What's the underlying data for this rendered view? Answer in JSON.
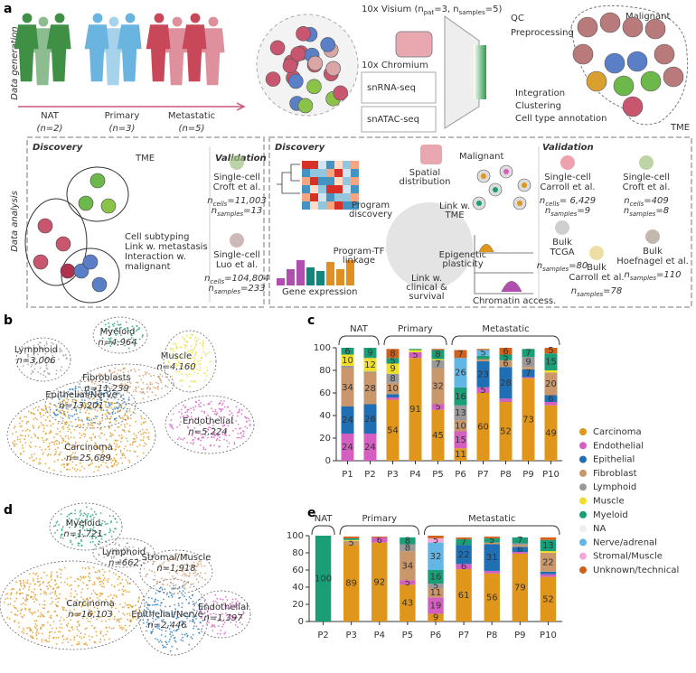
{
  "panel_labels": [
    "a",
    "b",
    "c",
    "d",
    "e"
  ],
  "generation": {
    "side_label": "Data generation",
    "cohorts": [
      {
        "name": "NAT",
        "n": "(n=2)",
        "color": "#3f8f45"
      },
      {
        "name": "Primary",
        "n": "(n=3)",
        "color": "#6ab4e0"
      },
      {
        "name": "Metastatic",
        "n": "(n=5)",
        "color": "#c8485a"
      }
    ],
    "visium": [
      "10x Visium (",
      "",
      "n",
      "pat",
      "=3, n",
      "samples",
      "=5)"
    ],
    "chromium": "10x Chromium",
    "snrna": "snRNA-seq",
    "snatac": "snATAC-seq",
    "qc": [
      "QC",
      "Preprocessing"
    ],
    "integration": [
      "Integration",
      "Clustering",
      "Cell type annotation"
    ],
    "malignant": "Malignant",
    "tme": "TME"
  },
  "analysis": {
    "side_label": "Data analysis",
    "tme": {
      "discovery": "Discovery",
      "title": "TME",
      "notes": [
        "Cell subtyping",
        "Link w. metastasis",
        "Interaction w.",
        "malignant"
      ],
      "validation": "Validation",
      "sets": [
        {
          "lines": [
            "Single-cell",
            "Croft et al."
          ],
          "stats": [
            [
              "n",
              "cells",
              "=11,003"
            ],
            [
              "n",
              "samples",
              "=13"
            ]
          ]
        },
        {
          "lines": [
            "Single-cell",
            "Luo et al."
          ],
          "stats": [
            [
              "n",
              "cells",
              "=104,804"
            ],
            [
              "n",
              "samples",
              "=233"
            ]
          ]
        }
      ]
    },
    "malignant": {
      "discovery": "Discovery",
      "title": "Malignant",
      "nodes": [
        [
          "Spatial",
          "distribution"
        ],
        [
          "Program",
          "discovery"
        ],
        [
          "Link w.",
          "TME"
        ],
        [
          "Program-TF",
          "linkage"
        ],
        [
          "Epigenetic",
          "plasticity"
        ],
        [
          "Link w.",
          "clinical &",
          "survival"
        ]
      ],
      "gene_expression": "Gene expression",
      "chromatin": "Chromatin access.",
      "validation": "Validation",
      "sets": [
        {
          "lines": [
            "Single-cell",
            "Carroll et al."
          ],
          "stats": [
            [
              "n",
              "cells",
              "= 6,429"
            ],
            [
              "n",
              "samples",
              "=9"
            ]
          ]
        },
        {
          "lines": [
            "Single-cell",
            "Croft et al."
          ],
          "stats": [
            [
              "n",
              "cells",
              "=409"
            ],
            [
              "n",
              "samples",
              "=8"
            ]
          ]
        },
        {
          "lines": [
            "Bulk",
            "TCGA"
          ],
          "stats": [
            [
              "n",
              "samples",
              "=80"
            ]
          ]
        },
        {
          "lines": [
            "Bulk",
            "Hoefnagel et al."
          ],
          "stats": [
            [
              "n",
              "samples",
              "=110"
            ]
          ]
        },
        {
          "lines": [
            "Bulk",
            "Carroll et al."
          ],
          "stats": [
            [
              "n",
              "samples",
              "=78"
            ]
          ]
        }
      ]
    }
  },
  "umap_b": [
    {
      "name": "Myeloid",
      "n": "n=4,964",
      "color": "#1a9e77"
    },
    {
      "name": "Lymphoid",
      "n": "n=3,006",
      "color": "#999999"
    },
    {
      "name": "Muscle",
      "n": "n=4,160",
      "color": "#f0de2a"
    },
    {
      "name": "Fibroblasts",
      "n": "n=11,239",
      "color": "#c9976b"
    },
    {
      "name": "Epithelial/Nerve",
      "n": "n=13,201",
      "color": "#2a7ab8"
    },
    {
      "name": "Endothelial",
      "n": "n=5,224",
      "color": "#d55fc0"
    },
    {
      "name": "Carcinoma",
      "n": "n=25,689",
      "color": "#e0961a"
    }
  ],
  "umap_d": [
    {
      "name": "Myeloid",
      "n": "n=1,721",
      "color": "#1a9e77"
    },
    {
      "name": "Lymphoid",
      "n": "n=662",
      "color": "#999999"
    },
    {
      "name": "Stromal/Muscle",
      "n": "n=1,918",
      "color": "#c9976b"
    },
    {
      "name": "Carcinoma",
      "n": "n=16,103",
      "color": "#e0961a"
    },
    {
      "name": "Epithelial/Nerve",
      "n": "n=2,446",
      "color": "#2a7ab8"
    },
    {
      "name": "Endothelial",
      "n": "n=1,397",
      "color": "#d55fc0"
    }
  ],
  "chart_data": [
    {
      "type": "stacked_bar",
      "categories": [
        "P1",
        "P2",
        "P3",
        "P4",
        "P5",
        "P6",
        "P7",
        "P8",
        "P9",
        "P10"
      ],
      "groups": [
        {
          "label": "NAT",
          "span": [
            0,
            1
          ]
        },
        {
          "label": "Primary",
          "span": [
            2,
            4
          ]
        },
        {
          "label": "Metastatic",
          "span": [
            5,
            9
          ]
        }
      ],
      "ylim": [
        0,
        100
      ],
      "yticks": [
        0,
        20,
        40,
        60,
        80,
        100
      ],
      "series": [
        {
          "name": "Carcinoma",
          "color": "#e0961a",
          "values": [
            0,
            0,
            54,
            91,
            45,
            11,
            60,
            52,
            73,
            49
          ]
        },
        {
          "name": "Endothelial",
          "color": "#d55fc0",
          "values": [
            24,
            24,
            2,
            5,
            5,
            15,
            5,
            3,
            1,
            3
          ]
        },
        {
          "name": "Epithelial",
          "color": "#1f6fb4",
          "values": [
            24,
            26,
            3,
            0,
            0,
            0,
            23,
            28,
            7,
            6
          ]
        },
        {
          "name": "Fibroblast",
          "color": "#c9976b",
          "values": [
            34,
            28,
            10,
            0,
            32,
            10,
            2,
            6,
            2,
            20
          ]
        },
        {
          "name": "Lymphoid",
          "color": "#999999",
          "values": [
            2,
            1,
            8,
            0,
            7,
            13,
            0,
            0,
            9,
            0
          ]
        },
        {
          "name": "Muscle",
          "color": "#f0de2a",
          "values": [
            10,
            12,
            9,
            2,
            1,
            0,
            0,
            0,
            0,
            2
          ]
        },
        {
          "name": "Myeloid",
          "color": "#1a9e77",
          "values": [
            6,
            9,
            5,
            1,
            8,
            16,
            3,
            5,
            7,
            15
          ]
        },
        {
          "name": "NA",
          "color": "#efefef",
          "values": [
            0,
            0,
            0,
            0,
            0,
            0,
            0,
            0,
            0,
            0
          ]
        },
        {
          "name": "Nerve/adrenal",
          "color": "#62b6e6",
          "values": [
            0,
            0,
            0,
            0,
            0,
            26,
            5,
            0,
            0,
            0
          ]
        },
        {
          "name": "Stromal/Muscle",
          "color": "#f4a7d8",
          "values": [
            0,
            0,
            0,
            0,
            0,
            0,
            0,
            0,
            0,
            0
          ]
        },
        {
          "name": "Unknown/technical",
          "color": "#d2601a",
          "values": [
            0,
            0,
            8,
            0,
            1,
            7,
            1,
            6,
            0,
            5
          ]
        }
      ]
    },
    {
      "type": "stacked_bar",
      "categories": [
        "P2",
        "P3",
        "P4",
        "P5",
        "P6",
        "P7",
        "P8",
        "P9",
        "P10"
      ],
      "groups": [
        {
          "label": "NAT",
          "span": [
            0,
            0
          ]
        },
        {
          "label": "Primary",
          "span": [
            1,
            3
          ]
        },
        {
          "label": "Metastatic",
          "span": [
            4,
            8
          ]
        }
      ],
      "ylim": [
        0,
        100
      ],
      "yticks": [
        0,
        20,
        40,
        60,
        80,
        100
      ],
      "series": [
        {
          "values": [
            0,
            89,
            92,
            43,
            9,
            61,
            56,
            79,
            52
          ]
        },
        {
          "values": [
            0,
            0,
            6,
            5,
            19,
            6,
            3,
            2,
            3
          ]
        },
        {
          "values": [
            0,
            0,
            0,
            0,
            0,
            22,
            31,
            6,
            3
          ]
        },
        {
          "values": [
            0,
            5,
            0,
            34,
            11,
            0,
            2,
            2,
            22
          ]
        },
        {
          "values": [
            0,
            0,
            0,
            8,
            5,
            0,
            0,
            2,
            0
          ]
        },
        {
          "values": [
            0,
            1,
            0,
            0,
            0,
            0,
            0,
            0,
            2
          ]
        },
        {
          "values": [
            100,
            2,
            0,
            8,
            16,
            7,
            5,
            7,
            13
          ]
        },
        {
          "values": [
            0,
            0,
            0,
            0,
            0,
            0,
            0,
            0,
            0
          ]
        },
        {
          "values": [
            0,
            0,
            0,
            0,
            32,
            0,
            0,
            0,
            0
          ]
        },
        {
          "values": [
            0,
            0,
            0,
            0,
            5,
            0,
            0,
            0,
            0
          ]
        },
        {
          "values": [
            0,
            2,
            1,
            0,
            3,
            2,
            2,
            0,
            3
          ]
        }
      ]
    }
  ]
}
